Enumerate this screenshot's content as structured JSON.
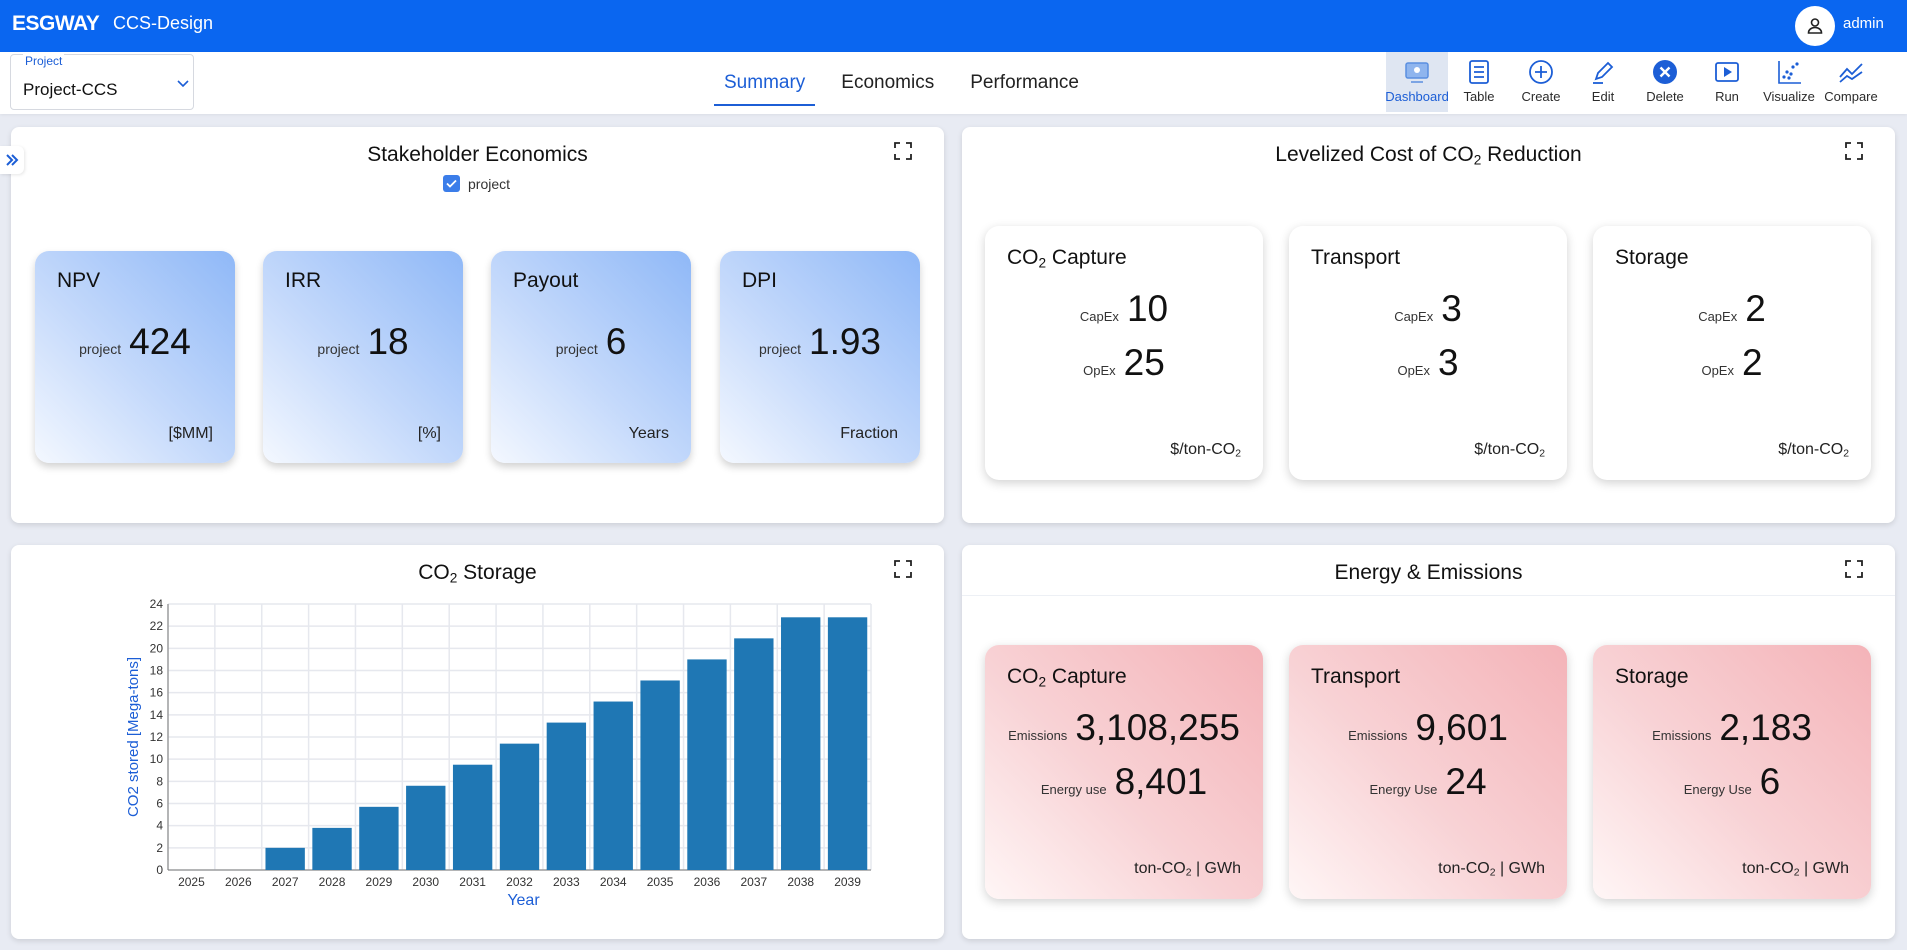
{
  "app": {
    "logo": "ESGWAY",
    "title": "CCS-Design",
    "user": "admin"
  },
  "project": {
    "label": "Project",
    "value": "Project-CCS"
  },
  "tabs": [
    {
      "label": "Summary",
      "active": true
    },
    {
      "label": "Economics",
      "active": false
    },
    {
      "label": "Performance",
      "active": false
    }
  ],
  "actions": [
    {
      "label": "Dashboard",
      "icon": "dashboard-icon",
      "active": true
    },
    {
      "label": "Table",
      "icon": "table-icon"
    },
    {
      "label": "Create",
      "icon": "create-icon"
    },
    {
      "label": "Edit",
      "icon": "edit-icon"
    },
    {
      "label": "Delete",
      "icon": "delete-icon"
    },
    {
      "label": "Run",
      "icon": "run-icon"
    },
    {
      "label": "Visualize",
      "icon": "visualize-icon"
    },
    {
      "label": "Compare",
      "icon": "compare-icon"
    }
  ],
  "stakeholder": {
    "title": "Stakeholder Economics",
    "legend": "project",
    "cards": [
      {
        "title": "NPV",
        "key": "project",
        "value": "424",
        "unit": "[$MM]"
      },
      {
        "title": "IRR",
        "key": "project",
        "value": "18",
        "unit": "[%]"
      },
      {
        "title": "Payout",
        "key": "project",
        "value": "6",
        "unit": "Years"
      },
      {
        "title": "DPI",
        "key": "project",
        "value": "1.93",
        "unit": "Fraction"
      }
    ]
  },
  "levelized": {
    "title_pre": "Levelized Cost of CO",
    "title_sub": "2",
    "title_post": " Reduction",
    "cards": [
      {
        "title_pre": "CO",
        "title_sub": "2",
        "title_post": " Capture",
        "capex_label": "CapEx",
        "capex": "10",
        "opex_label": "OpEx",
        "opex": "25",
        "unit_pre": "$/ton-CO",
        "unit_sub": "2"
      },
      {
        "title_pre": "Transport",
        "title_sub": "",
        "title_post": "",
        "capex_label": "CapEx",
        "capex": "3",
        "opex_label": "OpEx",
        "opex": "3",
        "unit_pre": "$/ton-CO",
        "unit_sub": "2"
      },
      {
        "title_pre": "Storage",
        "title_sub": "",
        "title_post": "",
        "capex_label": "CapEx",
        "capex": "2",
        "opex_label": "OpEx",
        "opex": "2",
        "unit_pre": "$/ton-CO",
        "unit_sub": "2"
      }
    ]
  },
  "storage_panel": {
    "title_pre": "CO",
    "title_sub": "2",
    "title_post": " Storage"
  },
  "energy": {
    "title": "Energy & Emissions",
    "cards": [
      {
        "title_pre": "CO",
        "title_sub": "2",
        "title_post": " Capture",
        "em_label": "Emissions",
        "em": "3,108,255",
        "en_label": "Energy use",
        "en": "8,401",
        "unit_pre": "ton-CO",
        "unit_sub": "2",
        "unit_post": " | GWh"
      },
      {
        "title_pre": "Transport",
        "title_sub": "",
        "title_post": "",
        "em_label": "Emissions",
        "em": "9,601",
        "en_label": "Energy Use",
        "en": "24",
        "unit_pre": "ton-CO",
        "unit_sub": "2",
        "unit_post": " | GWh"
      },
      {
        "title_pre": "Storage",
        "title_sub": "",
        "title_post": "",
        "em_label": "Emissions",
        "em": "2,183",
        "en_label": "Energy Use",
        "en": "6",
        "unit_pre": "ton-CO",
        "unit_sub": "2",
        "unit_post": " | GWh"
      }
    ]
  },
  "colors": {
    "topbar": "#0a66f0",
    "accent": "#1c5ed6",
    "bar": "#1f77b4"
  },
  "chart_data": {
    "type": "bar",
    "categories": [
      "2025",
      "2026",
      "2027",
      "2028",
      "2029",
      "2030",
      "2031",
      "2032",
      "2033",
      "2034",
      "2035",
      "2036",
      "2037",
      "2038",
      "2039"
    ],
    "values": [
      0,
      0,
      2,
      3.8,
      5.7,
      7.6,
      9.5,
      11.4,
      13.3,
      15.2,
      17.1,
      19,
      20.9,
      22.8,
      22.8
    ],
    "xlabel": "Year",
    "ylabel": "CO2 stored [Mega-tons]",
    "ylim": [
      0,
      24
    ],
    "yticks": [
      "0",
      "2",
      "4",
      "6",
      "8",
      "10",
      "12",
      "14",
      "16",
      "18",
      "20",
      "22",
      "24"
    ],
    "grid": true
  }
}
